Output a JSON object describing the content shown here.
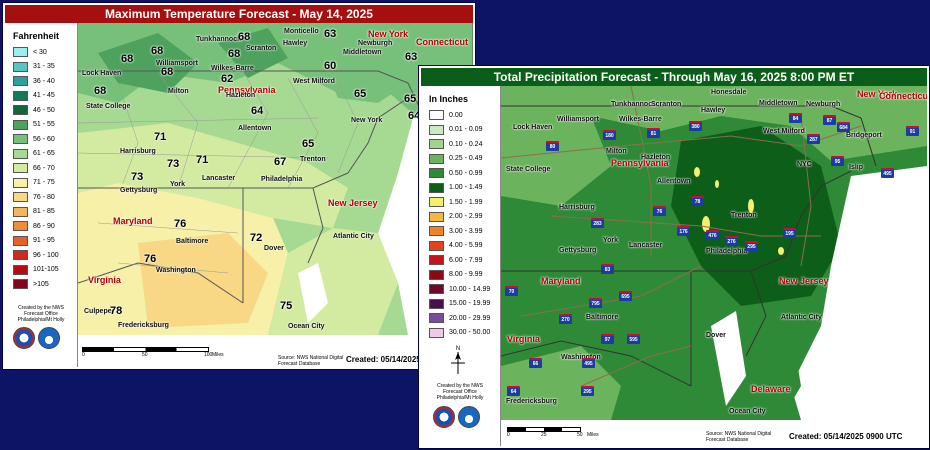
{
  "temperature_panel": {
    "title": "Maximum Temperature Forecast - May 14, 2025",
    "legend": {
      "title": "Fahrenheit",
      "items": [
        {
          "label": "< 30",
          "color": "#99f0ee"
        },
        {
          "label": "31 - 35",
          "color": "#56c5c4"
        },
        {
          "label": "36 - 40",
          "color": "#2f9f9d"
        },
        {
          "label": "41 - 45",
          "color": "#0f7c55"
        },
        {
          "label": "46 - 50",
          "color": "#17653a"
        },
        {
          "label": "51 - 55",
          "color": "#4fa25e"
        },
        {
          "label": "56 - 60",
          "color": "#77c07a"
        },
        {
          "label": "61 - 65",
          "color": "#a6d991"
        },
        {
          "label": "66 - 70",
          "color": "#d3eaa1"
        },
        {
          "label": "71 - 75",
          "color": "#f6f0a8"
        },
        {
          "label": "76 - 80",
          "color": "#f8d884"
        },
        {
          "label": "81 - 85",
          "color": "#f4b55e"
        },
        {
          "label": "86 - 90",
          "color": "#ee8d3c"
        },
        {
          "label": "91 - 95",
          "color": "#e5612a"
        },
        {
          "label": "96 - 100",
          "color": "#cf2a1d"
        },
        {
          "label": "101-105",
          "color": "#b10d12"
        },
        {
          "label": ">105",
          "color": "#85051a"
        }
      ]
    },
    "credit": "Created by the NWS Forecast Office Philadelphia/Mt Holly",
    "source": "Source: NWS National Digital Forecast Database",
    "created": "Created: 05/14/2025",
    "scale": {
      "labels": [
        "0",
        "50",
        "100"
      ],
      "unit": "Miles"
    },
    "states": [
      "Pennsylvania",
      "New Jersey",
      "Maryland",
      "Virginia",
      "New York",
      "Connecticut"
    ],
    "cities": [
      "Lock Haven",
      "Williamsport",
      "Tunkhannock",
      "Scranton",
      "Monticello",
      "Hawley",
      "Newburgh",
      "Middletown",
      "West Milford",
      "State College",
      "Milton",
      "Wilkes-Barre",
      "Hazleton",
      "Allentown",
      "Harrisburg",
      "Lancaster",
      "York",
      "Gettysburg",
      "Philadelphia",
      "Trenton",
      "New York",
      "Baltimore",
      "Dover",
      "Atlantic City",
      "Ocean City",
      "Washington",
      "Fredericksburg",
      "Culpeper"
    ],
    "values": [
      "68",
      "68",
      "68",
      "68",
      "63",
      "63",
      "68",
      "62",
      "60",
      "65",
      "68",
      "64",
      "65",
      "64",
      "71",
      "73",
      "71",
      "73",
      "67",
      "65",
      "76",
      "72",
      "76",
      "78",
      "75"
    ],
    "colors": {
      "ocean": "#ffffff",
      "border": "#555555"
    }
  },
  "precip_panel": {
    "title": "Total Precipitation Forecast - Through May 16, 2025 8:00 PM ET",
    "legend": {
      "title": "In Inches",
      "items": [
        {
          "label": "0.00",
          "color": "#ffffff"
        },
        {
          "label": "0.01 - 0.09",
          "color": "#cde8c4"
        },
        {
          "label": "0.10 - 0.24",
          "color": "#9fd38f"
        },
        {
          "label": "0.25 - 0.49",
          "color": "#6cb35e"
        },
        {
          "label": "0.50 - 0.99",
          "color": "#2f8a37"
        },
        {
          "label": "1.00 - 1.49",
          "color": "#0c5e18"
        },
        {
          "label": "1.50 - 1.99",
          "color": "#f4ef6e"
        },
        {
          "label": "2.00 - 2.99",
          "color": "#f5b942"
        },
        {
          "label": "3.00 - 3.99",
          "color": "#f0822a"
        },
        {
          "label": "4.00 - 5.99",
          "color": "#e3421f"
        },
        {
          "label": "6.00 - 7.99",
          "color": "#c4141a"
        },
        {
          "label": "8.00 - 9.99",
          "color": "#8e0a12"
        },
        {
          "label": "10.00 - 14.99",
          "color": "#6b0b28"
        },
        {
          "label": "15.00 - 19.99",
          "color": "#4a0f4d"
        },
        {
          "label": "20.00 - 29.99",
          "color": "#7a4b9d"
        },
        {
          "label": "30.00 - 50.00",
          "color": "#f0c8ea"
        }
      ]
    },
    "north": "N",
    "credit": "Created by the NWS Forecast Office Philadelphia/Mt Holly",
    "source": "Source: NWS National Digital Forecast Database",
    "created": "Created: 05/14/2025 0900 UTC",
    "scale": {
      "labels": [
        "0",
        "25",
        "50"
      ],
      "unit": "Miles"
    },
    "states": [
      "Pennsylvania",
      "New Jersey",
      "Maryland",
      "Virginia",
      "Delaware",
      "New York",
      "Connecticut"
    ],
    "cities": [
      "Lock Haven",
      "Williamsport",
      "Tunkhannock",
      "Scranton",
      "Honesdale",
      "Hawley",
      "Middletown",
      "Newburgh",
      "West Milford",
      "Bridgeport",
      "State College",
      "Milton",
      "Wilkes-Barre",
      "Hazleton",
      "Allentown",
      "Harrisburg",
      "Lancaster",
      "York",
      "Gettysburg",
      "Philadelphia",
      "Trenton",
      "NYC",
      "Islip",
      "Baltimore",
      "Washington",
      "Dover",
      "Atlantic City",
      "Ocean City",
      "Fredericksburg"
    ],
    "interstates": [
      "80",
      "180",
      "380",
      "81",
      "84",
      "87",
      "287",
      "684",
      "91",
      "95",
      "495",
      "78",
      "76",
      "176",
      "476",
      "276",
      "295",
      "195",
      "283",
      "83",
      "70",
      "270",
      "795",
      "695",
      "97",
      "595",
      "495",
      "66",
      "64",
      "295"
    ],
    "colors": {
      "ocean": "#ffffff",
      "border": "#333333"
    }
  }
}
